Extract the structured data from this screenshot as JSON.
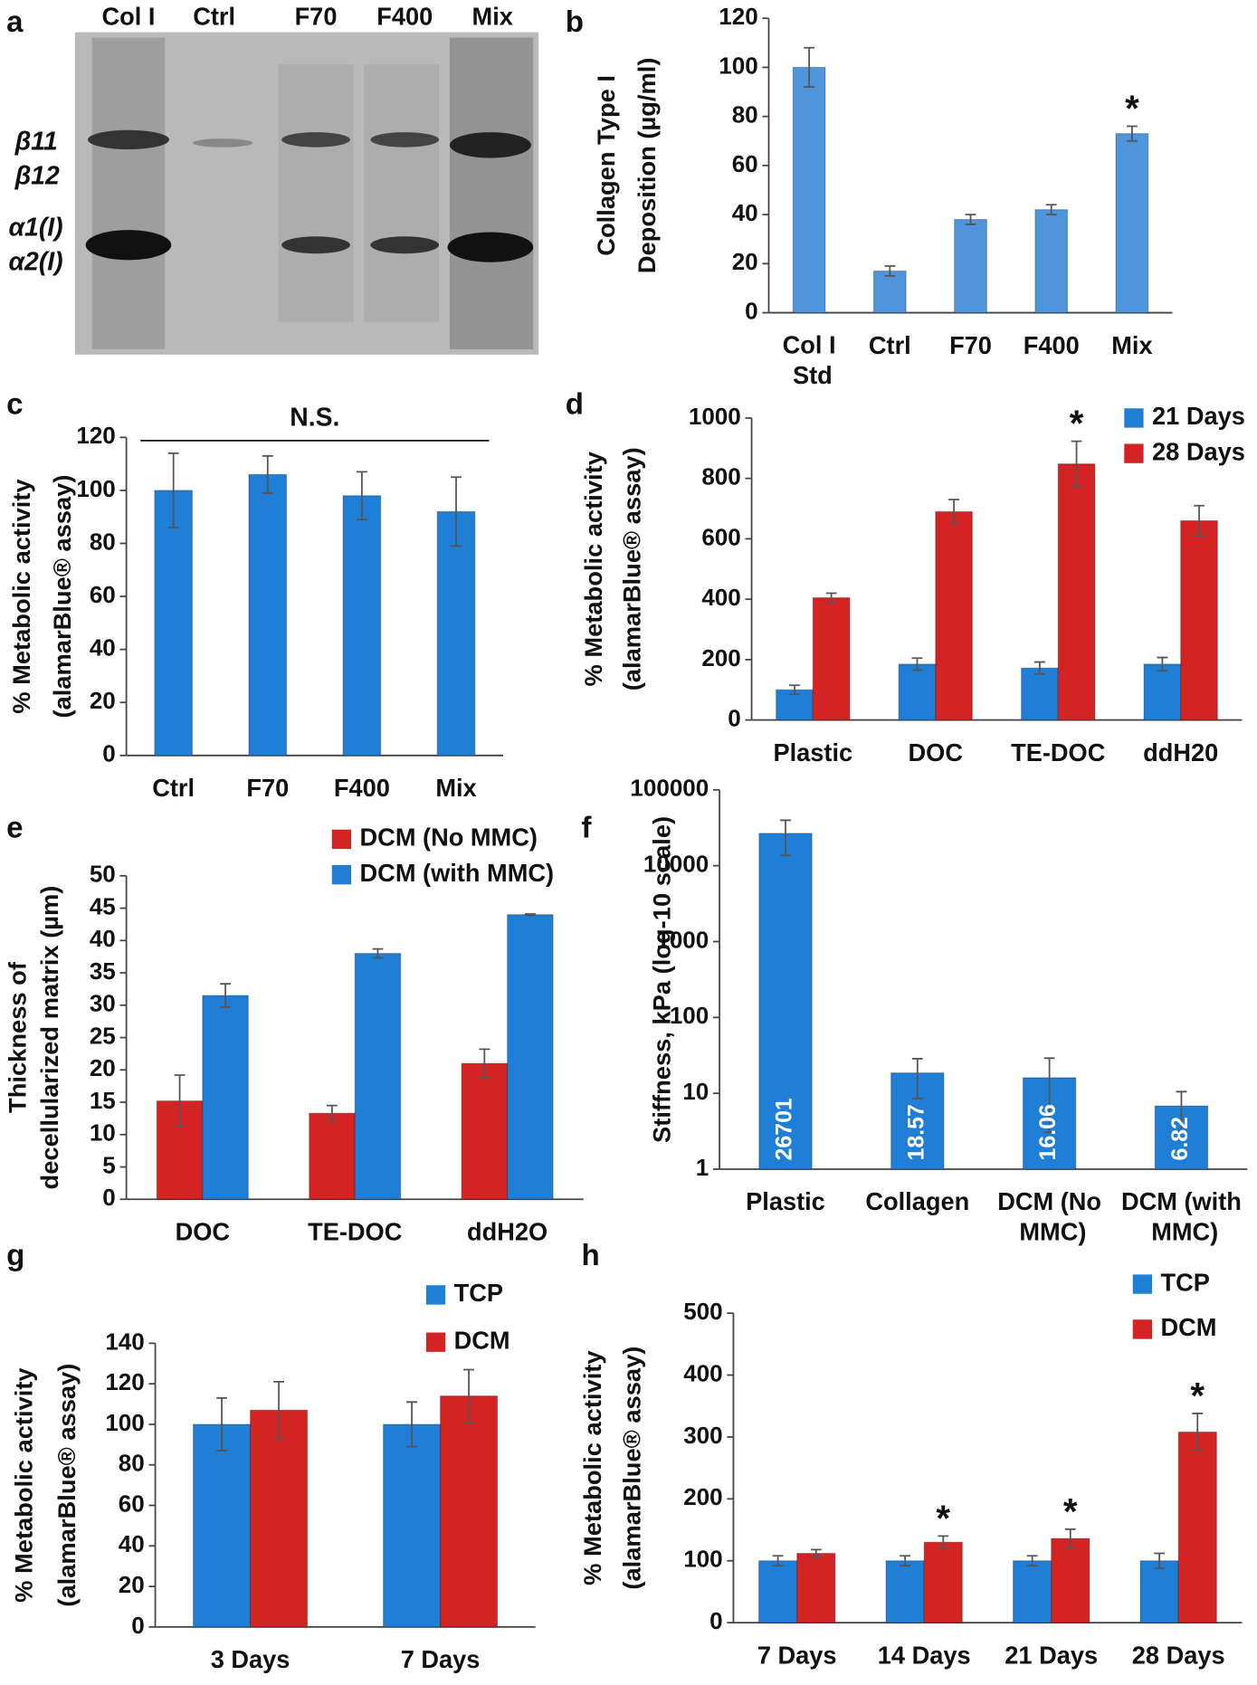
{
  "gel": {
    "panel": "a",
    "lanes": [
      "Col I",
      "Ctrl",
      "F70",
      "F400",
      "Mix"
    ],
    "bands": [
      "β11",
      "β12",
      "α1(I)",
      "α2(I)"
    ]
  },
  "chart_data": [
    {
      "type": "bar",
      "panel": "b",
      "ylabel": [
        "Collagen Type I",
        "Deposition (µg/ml)"
      ],
      "categories": [
        "Col I Std",
        "Ctrl",
        "F70",
        "F400",
        "Mix"
      ],
      "values": [
        100,
        17,
        38,
        42,
        73
      ],
      "errors": [
        8,
        2,
        2,
        2,
        3
      ],
      "color": "#4f95dc",
      "ylim": [
        0,
        120
      ],
      "yticks": [
        0,
        20,
        40,
        60,
        80,
        100,
        120
      ],
      "annotations": [
        {
          "text": "*",
          "category": "Mix"
        }
      ]
    },
    {
      "type": "bar",
      "panel": "c",
      "ylabel": [
        "% Metabolic activity",
        "(alamarBlue® assay)"
      ],
      "categories": [
        "Ctrl",
        "F70",
        "F400",
        "Mix"
      ],
      "values": [
        100,
        106,
        98,
        92
      ],
      "errors": [
        14,
        7,
        9,
        13
      ],
      "color": "#1f7fd6",
      "ylim": [
        0,
        120
      ],
      "yticks": [
        0,
        20,
        40,
        60,
        80,
        100,
        120
      ],
      "annotations": [
        {
          "text": "N.S."
        }
      ]
    },
    {
      "type": "bar",
      "panel": "d",
      "ylabel": [
        "% Metabolic activity",
        "(alamarBlue® assay)"
      ],
      "categories": [
        "Plastic",
        "DOC",
        "TE-DOC",
        "ddH20"
      ],
      "series": [
        {
          "name": "21 Days",
          "color": "#1f7fd6",
          "values": [
            100,
            185,
            172,
            185
          ],
          "errors": [
            15,
            20,
            20,
            22
          ]
        },
        {
          "name": "28 Days",
          "color": "#d42323",
          "values": [
            405,
            690,
            848,
            660
          ],
          "errors": [
            15,
            40,
            75,
            50
          ]
        }
      ],
      "ylim": [
        0,
        1000
      ],
      "yticks": [
        0,
        200,
        400,
        600,
        800,
        1000
      ],
      "annotations": [
        {
          "text": "*",
          "category": "TE-DOC",
          "series": "28 Days"
        }
      ]
    },
    {
      "type": "bar",
      "panel": "e",
      "ylabel": [
        "Thickness of",
        "decellularized matrix (µm)"
      ],
      "categories": [
        "DOC",
        "TE-DOC",
        "ddH2O"
      ],
      "series": [
        {
          "name": "DCM (No MMC)",
          "color": "#d42323",
          "values": [
            15.2,
            13.3,
            21
          ],
          "errors": [
            4,
            1.2,
            2.2
          ]
        },
        {
          "name": "DCM (with MMC)",
          "color": "#1f7fd6",
          "values": [
            31.5,
            38,
            44
          ],
          "errors": [
            1.8,
            0.7,
            0.1
          ]
        }
      ],
      "ylim": [
        0,
        50
      ],
      "yticks": [
        0,
        5,
        10,
        15,
        20,
        25,
        30,
        35,
        40,
        45,
        50
      ]
    },
    {
      "type": "bar",
      "panel": "f",
      "ylabel": [
        "Stiffness, kPa (log-10 scale)"
      ],
      "yscale": "log",
      "categories": [
        "Plastic",
        "Collagen",
        "DCM (No MMC)",
        "DCM (with MMC)"
      ],
      "values": [
        26701,
        18.57,
        16.06,
        6.82
      ],
      "errors": [
        13000,
        10,
        13,
        3.7
      ],
      "data_labels": true,
      "color": "#1f7fd6",
      "ylim": [
        1,
        100000
      ],
      "yticks": [
        1,
        10,
        100,
        1000,
        10000,
        100000
      ]
    },
    {
      "type": "bar",
      "panel": "g",
      "ylabel": [
        "% Metabolic activity",
        "(alamarBlue® assay)"
      ],
      "categories": [
        "3 Days",
        "7 Days"
      ],
      "series": [
        {
          "name": "TCP",
          "color": "#1f7fd6",
          "values": [
            100,
            100
          ],
          "errors": [
            13,
            11
          ]
        },
        {
          "name": "DCM",
          "color": "#d42323",
          "values": [
            107,
            114
          ],
          "errors": [
            14,
            13
          ]
        }
      ],
      "ylim": [
        0,
        140
      ],
      "yticks": [
        0,
        20,
        40,
        60,
        80,
        100,
        120,
        140
      ]
    },
    {
      "type": "bar",
      "panel": "h",
      "ylabel": [
        "% Metabolic activity",
        "(alamarBlue® assay)"
      ],
      "categories": [
        "7 Days",
        "14 Days",
        "21 Days",
        "28 Days"
      ],
      "series": [
        {
          "name": "TCP",
          "color": "#1f7fd6",
          "values": [
            100,
            100,
            100,
            100
          ],
          "errors": [
            8,
            8,
            8,
            12
          ]
        },
        {
          "name": "DCM",
          "color": "#d42323",
          "values": [
            112,
            130,
            136,
            308
          ],
          "errors": [
            6,
            10,
            15,
            30
          ]
        }
      ],
      "ylim": [
        0,
        500
      ],
      "yticks": [
        0,
        100,
        200,
        300,
        400,
        500
      ],
      "annotations": [
        {
          "text": "*",
          "category": "14 Days",
          "series": "DCM"
        },
        {
          "text": "*",
          "category": "21 Days",
          "series": "DCM"
        },
        {
          "text": "*",
          "category": "28 Days",
          "series": "DCM"
        }
      ]
    }
  ]
}
